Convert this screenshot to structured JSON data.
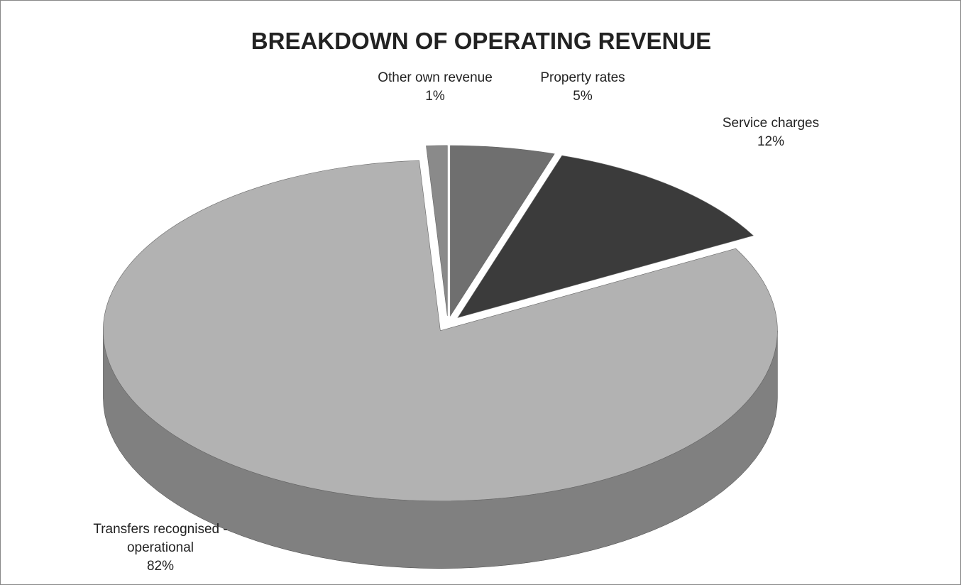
{
  "chart_data": {
    "type": "pie",
    "title": "BREAKDOWN OF OPERATING REVENUE",
    "categories": [
      "Property rates",
      "Service charges",
      "Transfers recognised - operational",
      "Other own revenue"
    ],
    "values": [
      5,
      12,
      82,
      1
    ],
    "value_labels": [
      "5%",
      "12%",
      "82%",
      "1%"
    ],
    "colors": [
      "#6f6f6f",
      "#3b3b3b",
      "#b2b2b2",
      "#8a8a8a"
    ]
  }
}
